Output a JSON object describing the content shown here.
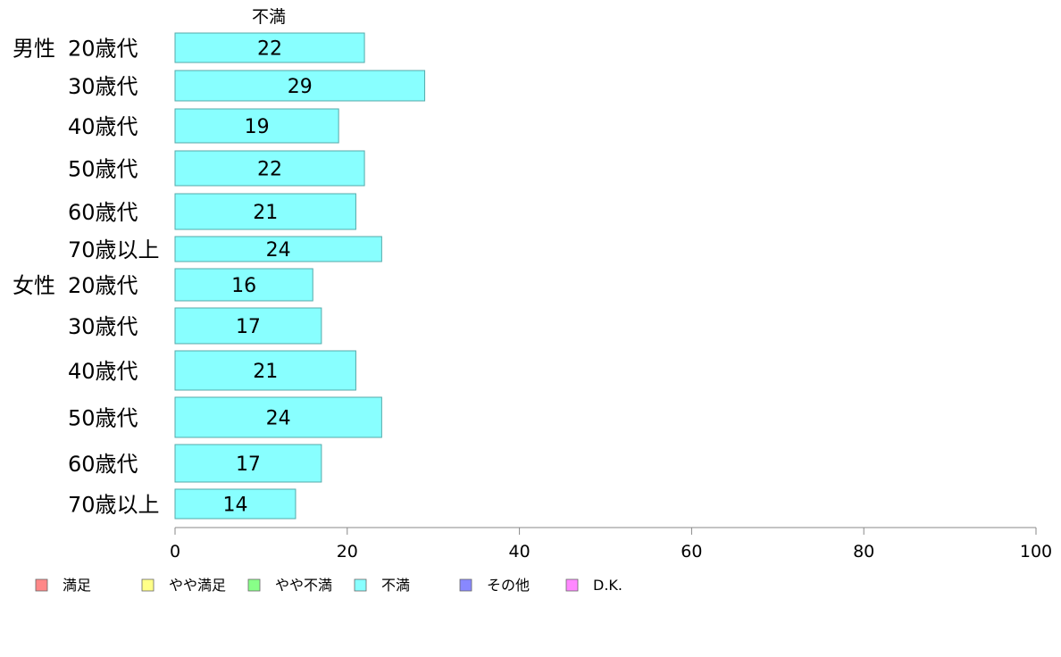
{
  "chart_data": {
    "type": "bar",
    "orientation": "horizontal",
    "stacked": true,
    "series_title": "不満",
    "groups": [
      {
        "label": "男性",
        "first_category_index": 0
      },
      {
        "label": "女性",
        "first_category_index": 6
      }
    ],
    "categories": [
      "20歳代",
      "30歳代",
      "40歳代",
      "50歳代",
      "60歳代",
      "70歳以上",
      "20歳代",
      "30歳代",
      "40歳代",
      "50歳代",
      "60歳代",
      "70歳以上"
    ],
    "series": [
      {
        "name": "不満",
        "color": "#88ffff",
        "values": [
          22,
          29,
          19,
          22,
          21,
          24,
          16,
          17,
          21,
          24,
          17,
          14
        ]
      }
    ],
    "xlim": [
      0,
      100
    ],
    "xticks": [
      0,
      20,
      40,
      60,
      80,
      100
    ],
    "grid": false,
    "legend": {
      "position": "bottom-left",
      "entries": [
        {
          "label": "満足",
          "color": "#ff8888"
        },
        {
          "label": "やや満足",
          "color": "#ffff88"
        },
        {
          "label": "やや不満",
          "color": "#88ff88"
        },
        {
          "label": "不満",
          "color": "#88ffff"
        },
        {
          "label": "その他",
          "color": "#8888ff"
        },
        {
          "label": "D.K.",
          "color": "#ff88ff"
        }
      ]
    }
  }
}
